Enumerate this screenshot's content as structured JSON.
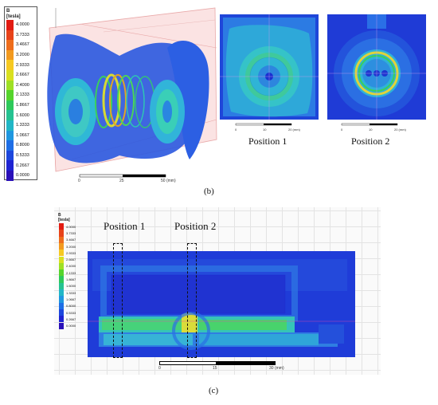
{
  "legend": {
    "title_line1": "B",
    "title_line2": "[tesla]",
    "values": [
      "4.0000",
      "3.7333",
      "3.4667",
      "3.2000",
      "2.9333",
      "2.6667",
      "2.4000",
      "2.1333",
      "1.8667",
      "1.6000",
      "1.3333",
      "1.0667",
      "0.8000",
      "0.5333",
      "0.2667",
      "0.0000"
    ],
    "colors": [
      "#e21b12",
      "#e8431a",
      "#ee6d1c",
      "#f29a1f",
      "#f6c921",
      "#d9e01f",
      "#9ee024",
      "#55d42c",
      "#2dc95a",
      "#25c291",
      "#21b6c6",
      "#1f97e0",
      "#1e6ee6",
      "#1d47dd",
      "#1f24d2",
      "#2a10b8"
    ]
  },
  "panel_b": {
    "label": "(b)",
    "position1": "Position 1",
    "position2": "Position 2",
    "scale_main": [
      "0",
      "25",
      "50 (mm)"
    ],
    "scale_small": [
      "0",
      "10",
      "20 (mm)"
    ]
  },
  "panel_c": {
    "label": "(c)",
    "position1": "Position 1",
    "position2": "Position 2",
    "scale": [
      "0",
      "15",
      "30 (mm)"
    ]
  },
  "colors": {
    "dark_blue": "#1d3fd8",
    "mid_blue": "#2a6fe6",
    "cyan": "#2ec4d6",
    "green": "#37d15a",
    "yellow": "#e4d83a"
  }
}
